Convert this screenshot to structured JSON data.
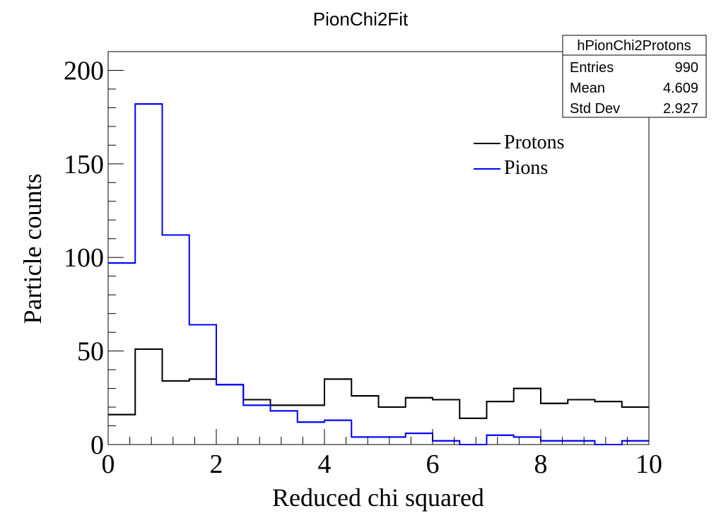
{
  "chart_data": {
    "type": "histogram",
    "title": "PionChi2Fit",
    "xlabel": "Reduced chi squared",
    "ylabel": "Particle counts",
    "xlim": [
      0,
      10
    ],
    "ylim": [
      0,
      210
    ],
    "bin_edges": [
      0,
      0.5,
      1,
      1.5,
      2,
      2.5,
      3,
      3.5,
      4,
      4.5,
      5,
      5.5,
      6,
      6.5,
      7,
      7.5,
      8,
      8.5,
      9,
      9.5,
      10
    ],
    "x_ticks": [
      "0",
      "2",
      "4",
      "6",
      "8",
      "10"
    ],
    "y_ticks": [
      "0",
      "50",
      "100",
      "150",
      "200"
    ],
    "grid": false,
    "legend_position": "upper-right",
    "series": [
      {
        "name": "Protons",
        "color": "#000000",
        "values": [
          16,
          51,
          34,
          35,
          32,
          24,
          21,
          21,
          35,
          26,
          20,
          25,
          24,
          14,
          23,
          30,
          22,
          24,
          23,
          20
        ]
      },
      {
        "name": "Pions",
        "color": "#0000ff",
        "values": [
          97,
          182,
          112,
          64,
          32,
          21,
          18,
          12,
          13,
          4,
          4,
          6,
          2,
          0,
          5,
          4,
          2,
          2,
          0,
          2
        ]
      }
    ],
    "stats_box": {
      "title": "hPionChi2Protons",
      "rows": [
        {
          "label": "Entries",
          "value": "990"
        },
        {
          "label": "Mean",
          "value": "4.609"
        },
        {
          "label": "Std Dev",
          "value": "2.927"
        }
      ]
    }
  }
}
